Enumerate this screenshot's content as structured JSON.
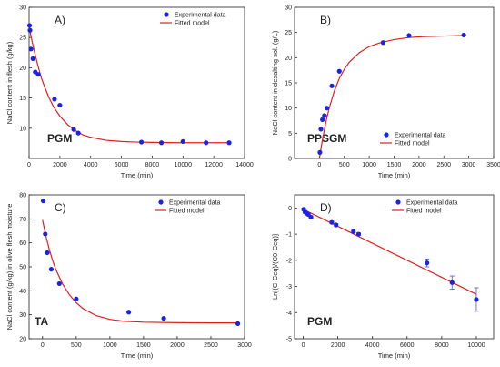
{
  "chart_data": [
    {
      "type": "scatter",
      "panel_label": "A)",
      "tag": "PGM",
      "xlabel": "Time (min)",
      "ylabel": "NaCl content in flesh (g/kg)",
      "xlim": [
        0,
        14000
      ],
      "ylim": [
        5,
        30
      ],
      "xticks": [
        0,
        2000,
        4000,
        6000,
        8000,
        10000,
        12000,
        14000
      ],
      "yticks": [
        10,
        15,
        20,
        25,
        30
      ],
      "legend_position": "top-right",
      "series": [
        {
          "name": "Experimental data",
          "kind": "points",
          "x": [
            30,
            60,
            120,
            250,
            400,
            600,
            1650,
            2000,
            2900,
            3200,
            7300,
            8600,
            10000,
            11500,
            13000
          ],
          "y": [
            27.0,
            26.2,
            23.1,
            21.5,
            19.3,
            18.9,
            14.8,
            13.8,
            9.8,
            9.2,
            7.7,
            7.6,
            7.8,
            7.6,
            7.6
          ]
        },
        {
          "name": "Fitted model",
          "kind": "line",
          "x": [
            0,
            200,
            400,
            600,
            800,
            1000,
            1300,
            1600,
            2000,
            2500,
            3000,
            3500,
            4000,
            5000,
            6000,
            7000,
            8000,
            9000,
            10000,
            11000,
            12000,
            13000
          ],
          "y": [
            26.8,
            24.3,
            22.1,
            20.1,
            18.3,
            16.9,
            15.0,
            13.5,
            12.0,
            10.6,
            9.6,
            8.9,
            8.5,
            8.0,
            7.8,
            7.7,
            7.65,
            7.62,
            7.6,
            7.6,
            7.6,
            7.6
          ]
        }
      ]
    },
    {
      "type": "scatter",
      "panel_label": "B)",
      "tag": "PPSGM",
      "xlabel": "Time (min)",
      "ylabel": "NaCl content in desalting sol. (g/L)",
      "xlim": [
        -500,
        3500
      ],
      "ylim": [
        0,
        30
      ],
      "xticks": [
        0,
        500,
        1000,
        1500,
        2000,
        2500,
        3000,
        3500
      ],
      "yticks": [
        0,
        5,
        10,
        15,
        20,
        25,
        30
      ],
      "legend_position": "bottom-right",
      "series": [
        {
          "name": "Experimental data",
          "kind": "points",
          "x": [
            10,
            30,
            60,
            100,
            150,
            250,
            400,
            1280,
            1800,
            2900
          ],
          "y": [
            1.2,
            5.8,
            7.7,
            8.5,
            10.0,
            14.4,
            17.3,
            23.0,
            24.4,
            24.5
          ]
        },
        {
          "name": "Fitted model",
          "kind": "line",
          "x": [
            0,
            50,
            100,
            150,
            200,
            300,
            400,
            500,
            600,
            800,
            1000,
            1200,
            1500,
            1800,
            2100,
            2500,
            2900
          ],
          "y": [
            0.0,
            3.1,
            5.8,
            8.1,
            10.1,
            13.4,
            15.9,
            17.7,
            19.1,
            21.0,
            22.2,
            22.9,
            23.6,
            24.0,
            24.2,
            24.3,
            24.4
          ]
        }
      ]
    },
    {
      "type": "scatter",
      "panel_label": "C)",
      "tag": "TA",
      "xlabel": "Time (min)",
      "ylabel": "NaCl content (g/kg) in olive flesh moisture",
      "xlim": [
        -200,
        3000
      ],
      "ylim": [
        20,
        80
      ],
      "xticks": [
        0,
        500,
        1000,
        1500,
        2000,
        2500,
        3000
      ],
      "yticks": [
        20,
        30,
        40,
        50,
        60,
        70,
        80
      ],
      "legend_position": "top-right",
      "series": [
        {
          "name": "Experimental data",
          "kind": "points",
          "x": [
            10,
            40,
            70,
            130,
            250,
            500,
            1280,
            1800,
            2900
          ],
          "y": [
            77.5,
            63.7,
            55.9,
            49.0,
            43.0,
            36.6,
            31.1,
            28.5,
            26.3
          ]
        },
        {
          "name": "Fitted model",
          "kind": "line",
          "x": [
            0,
            50,
            100,
            150,
            200,
            300,
            400,
            500,
            600,
            800,
            1000,
            1200,
            1500,
            2000,
            2500,
            2900
          ],
          "y": [
            69.5,
            62.8,
            57.3,
            52.6,
            48.7,
            42.7,
            38.3,
            35.0,
            32.6,
            29.6,
            28.1,
            27.3,
            26.9,
            26.7,
            26.6,
            26.6
          ]
        }
      ]
    },
    {
      "type": "scatter",
      "panel_label": "D)",
      "tag": "PGM",
      "xlabel": "Time (min)",
      "ylabel": "Ln[(C-Ceq)/(C0-Ceq)]",
      "xlim": [
        -500,
        11000
      ],
      "ylim": [
        -5,
        0.5
      ],
      "xticks": [
        0,
        2000,
        4000,
        6000,
        8000,
        10000
      ],
      "yticks": [
        -5,
        -4,
        -3,
        -2,
        -1,
        0
      ],
      "legend_position": "top-right",
      "series": [
        {
          "name": "Experimental data",
          "kind": "points",
          "x": [
            30,
            100,
            200,
            300,
            450,
            1650,
            1900,
            2900,
            3200,
            7150,
            8600,
            10000
          ],
          "y": [
            -0.05,
            -0.15,
            -0.2,
            -0.25,
            -0.35,
            -0.55,
            -0.65,
            -0.9,
            -1.0,
            -2.1,
            -2.85,
            -3.5
          ],
          "error": [
            0.05,
            0.05,
            0.05,
            0.05,
            0.05,
            0.05,
            0.05,
            0.05,
            0.05,
            0.15,
            0.25,
            0.45
          ]
        },
        {
          "name": "Fitted model",
          "kind": "line",
          "x": [
            0,
            10000
          ],
          "y": [
            -0.05,
            -3.3
          ]
        }
      ]
    }
  ],
  "colors": {
    "points": "#1a22e6",
    "fit": "#e02020",
    "axis": "#222222",
    "error": "#4a55cc"
  }
}
